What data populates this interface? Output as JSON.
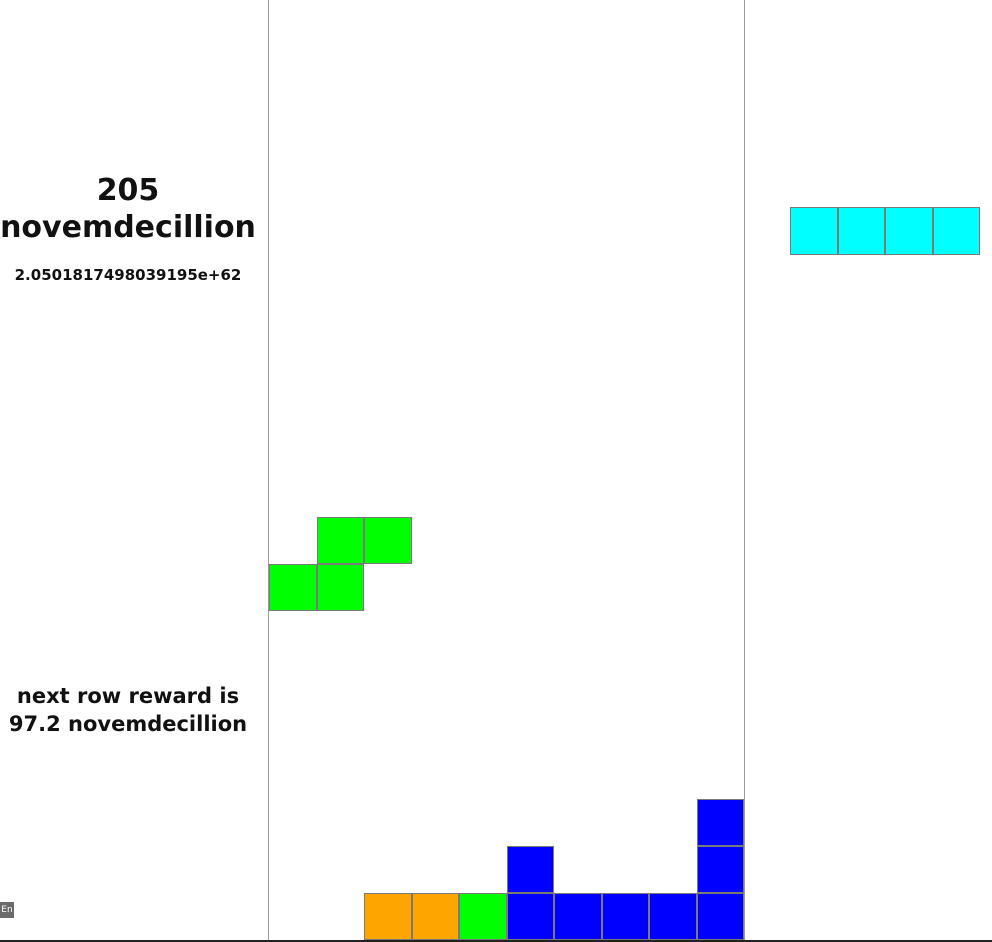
{
  "score": {
    "short": "205\nnovemdecillion",
    "exact": "2.0501817498039195e+62"
  },
  "reward": {
    "text": "next row reward is\n97.2 novemdecillion"
  },
  "lang_badge": "En",
  "colors": {
    "cyan": "#00ffff",
    "green": "#00ff00",
    "blue": "#0000ff",
    "orange": "#ffa500",
    "grid_border": "#7a7a7a"
  },
  "board": {
    "columns": 10,
    "rows": 20,
    "active_piece": {
      "type": "S",
      "color": "green",
      "cells": [
        [
          1,
          11
        ],
        [
          2,
          11
        ],
        [
          0,
          12
        ],
        [
          1,
          12
        ]
      ]
    },
    "settled_blocks": [
      {
        "col": 9,
        "row": 17,
        "color": "blue"
      },
      {
        "col": 5,
        "row": 18,
        "color": "blue"
      },
      {
        "col": 9,
        "row": 18,
        "color": "blue"
      },
      {
        "col": 2,
        "row": 19,
        "color": "orange"
      },
      {
        "col": 3,
        "row": 19,
        "color": "orange"
      },
      {
        "col": 4,
        "row": 19,
        "color": "green"
      },
      {
        "col": 5,
        "row": 19,
        "color": "blue"
      },
      {
        "col": 6,
        "row": 19,
        "color": "blue"
      },
      {
        "col": 7,
        "row": 19,
        "color": "blue"
      },
      {
        "col": 8,
        "row": 19,
        "color": "blue"
      },
      {
        "col": 9,
        "row": 19,
        "color": "blue"
      }
    ]
  },
  "next_piece": {
    "type": "I",
    "color": "cyan",
    "cells": [
      [
        0,
        0
      ],
      [
        1,
        0
      ],
      [
        2,
        0
      ],
      [
        3,
        0
      ]
    ]
  }
}
